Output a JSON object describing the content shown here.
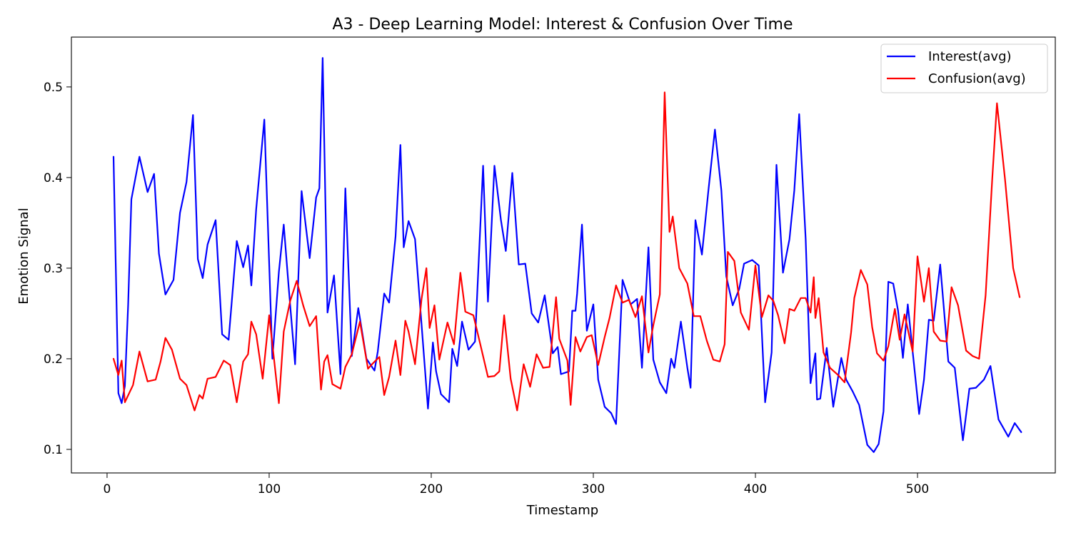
{
  "chart_data": {
    "type": "line",
    "title": "A3 - Deep Learning Model: Interest & Confusion Over Time",
    "xlabel": "Timestamp",
    "ylabel": "Emotion Signal",
    "xlim": [
      -22,
      585
    ],
    "ylim": [
      0.074,
      0.555
    ],
    "x_ticks": [
      0,
      100,
      200,
      300,
      400,
      500
    ],
    "y_ticks": [
      0.1,
      0.2,
      0.3,
      0.4,
      0.5
    ],
    "grid": false,
    "legend_position": "top-right",
    "series": [
      {
        "name": "Interest(avg)",
        "color": "#0000ff",
        "points": [
          [
            4,
            0.423
          ],
          [
            7,
            0.162
          ],
          [
            9,
            0.151
          ],
          [
            11,
            0.17
          ],
          [
            13,
            0.26
          ],
          [
            15,
            0.376
          ],
          [
            20,
            0.423
          ],
          [
            25,
            0.384
          ],
          [
            29,
            0.404
          ],
          [
            32,
            0.316
          ],
          [
            36,
            0.271
          ],
          [
            41,
            0.287
          ],
          [
            45,
            0.361
          ],
          [
            49,
            0.395
          ],
          [
            53,
            0.469
          ],
          [
            56,
            0.31
          ],
          [
            59,
            0.289
          ],
          [
            62,
            0.326
          ],
          [
            67,
            0.353
          ],
          [
            71,
            0.227
          ],
          [
            75,
            0.221
          ],
          [
            80,
            0.33
          ],
          [
            84,
            0.301
          ],
          [
            87,
            0.325
          ],
          [
            89,
            0.281
          ],
          [
            92,
            0.365
          ],
          [
            97,
            0.464
          ],
          [
            102,
            0.2
          ],
          [
            106,
            0.296
          ],
          [
            109,
            0.348
          ],
          [
            112,
            0.28
          ],
          [
            116,
            0.194
          ],
          [
            120,
            0.385
          ],
          [
            125,
            0.311
          ],
          [
            129,
            0.378
          ],
          [
            131,
            0.388
          ],
          [
            133,
            0.532
          ],
          [
            136,
            0.251
          ],
          [
            140,
            0.292
          ],
          [
            144,
            0.183
          ],
          [
            147,
            0.388
          ],
          [
            151,
            0.203
          ],
          [
            155,
            0.256
          ],
          [
            160,
            0.2
          ],
          [
            165,
            0.187
          ],
          [
            167,
            0.208
          ],
          [
            171,
            0.272
          ],
          [
            174,
            0.262
          ],
          [
            178,
            0.335
          ],
          [
            181,
            0.436
          ],
          [
            183,
            0.323
          ],
          [
            186,
            0.352
          ],
          [
            190,
            0.332
          ],
          [
            198,
            0.145
          ],
          [
            201,
            0.218
          ],
          [
            203,
            0.186
          ],
          [
            206,
            0.161
          ],
          [
            211,
            0.152
          ],
          [
            213,
            0.211
          ],
          [
            216,
            0.192
          ],
          [
            219,
            0.241
          ],
          [
            223,
            0.21
          ],
          [
            227,
            0.219
          ],
          [
            232,
            0.413
          ],
          [
            235,
            0.263
          ],
          [
            239,
            0.413
          ],
          [
            243,
            0.353
          ],
          [
            246,
            0.319
          ],
          [
            250,
            0.405
          ],
          [
            254,
            0.304
          ],
          [
            258,
            0.305
          ],
          [
            262,
            0.25
          ],
          [
            266,
            0.24
          ],
          [
            270,
            0.27
          ],
          [
            275,
            0.206
          ],
          [
            278,
            0.213
          ],
          [
            280,
            0.183
          ],
          [
            285,
            0.186
          ],
          [
            287,
            0.253
          ],
          [
            289,
            0.253
          ],
          [
            290,
            0.272
          ],
          [
            293,
            0.348
          ],
          [
            296,
            0.231
          ],
          [
            300,
            0.26
          ],
          [
            303,
            0.177
          ],
          [
            307,
            0.147
          ],
          [
            311,
            0.14
          ],
          [
            314,
            0.128
          ],
          [
            318,
            0.287
          ],
          [
            323,
            0.26
          ],
          [
            327,
            0.266
          ],
          [
            330,
            0.19
          ],
          [
            334,
            0.323
          ],
          [
            337,
            0.199
          ],
          [
            341,
            0.174
          ],
          [
            345,
            0.162
          ],
          [
            348,
            0.2
          ],
          [
            350,
            0.19
          ],
          [
            354,
            0.241
          ],
          [
            358,
            0.19
          ],
          [
            360,
            0.168
          ],
          [
            363,
            0.353
          ],
          [
            367,
            0.315
          ],
          [
            371,
            0.386
          ],
          [
            375,
            0.453
          ],
          [
            379,
            0.386
          ],
          [
            382,
            0.291
          ],
          [
            386,
            0.259
          ],
          [
            390,
            0.277
          ],
          [
            393,
            0.305
          ],
          [
            398,
            0.309
          ],
          [
            402,
            0.303
          ],
          [
            406,
            0.152
          ],
          [
            410,
            0.207
          ],
          [
            413,
            0.414
          ],
          [
            417,
            0.295
          ],
          [
            421,
            0.332
          ],
          [
            424,
            0.386
          ],
          [
            427,
            0.47
          ],
          [
            431,
            0.332
          ],
          [
            434,
            0.173
          ],
          [
            437,
            0.206
          ],
          [
            438,
            0.155
          ],
          [
            440,
            0.156
          ],
          [
            444,
            0.212
          ],
          [
            448,
            0.147
          ],
          [
            453,
            0.201
          ],
          [
            456,
            0.177
          ],
          [
            460,
            0.164
          ],
          [
            464,
            0.149
          ],
          [
            469,
            0.105
          ],
          [
            473,
            0.097
          ],
          [
            476,
            0.106
          ],
          [
            479,
            0.142
          ],
          [
            482,
            0.285
          ],
          [
            485,
            0.283
          ],
          [
            488,
            0.253
          ],
          [
            491,
            0.201
          ],
          [
            494,
            0.26
          ],
          [
            501,
            0.139
          ],
          [
            504,
            0.177
          ],
          [
            507,
            0.243
          ],
          [
            510,
            0.242
          ],
          [
            514,
            0.304
          ],
          [
            519,
            0.197
          ],
          [
            523,
            0.19
          ],
          [
            528,
            0.11
          ],
          [
            532,
            0.167
          ],
          [
            536,
            0.168
          ],
          [
            541,
            0.177
          ],
          [
            545,
            0.192
          ],
          [
            550,
            0.133
          ],
          [
            556,
            0.114
          ],
          [
            560,
            0.129
          ],
          [
            564,
            0.119
          ]
        ]
      },
      {
        "name": "Confusion(avg)",
        "color": "#ff0000",
        "points": [
          [
            4,
            0.2
          ],
          [
            7,
            0.182
          ],
          [
            9,
            0.198
          ],
          [
            11,
            0.152
          ],
          [
            16,
            0.171
          ],
          [
            20,
            0.208
          ],
          [
            25,
            0.175
          ],
          [
            30,
            0.177
          ],
          [
            33,
            0.197
          ],
          [
            36,
            0.223
          ],
          [
            40,
            0.21
          ],
          [
            45,
            0.178
          ],
          [
            49,
            0.171
          ],
          [
            54,
            0.143
          ],
          [
            57,
            0.16
          ],
          [
            59,
            0.156
          ],
          [
            62,
            0.178
          ],
          [
            67,
            0.18
          ],
          [
            72,
            0.198
          ],
          [
            76,
            0.193
          ],
          [
            80,
            0.152
          ],
          [
            84,
            0.197
          ],
          [
            87,
            0.205
          ],
          [
            89,
            0.241
          ],
          [
            92,
            0.227
          ],
          [
            96,
            0.178
          ],
          [
            100,
            0.248
          ],
          [
            106,
            0.151
          ],
          [
            109,
            0.23
          ],
          [
            113,
            0.264
          ],
          [
            117,
            0.286
          ],
          [
            121,
            0.259
          ],
          [
            125,
            0.236
          ],
          [
            129,
            0.247
          ],
          [
            132,
            0.166
          ],
          [
            134,
            0.197
          ],
          [
            136,
            0.204
          ],
          [
            139,
            0.172
          ],
          [
            144,
            0.167
          ],
          [
            147,
            0.191
          ],
          [
            151,
            0.205
          ],
          [
            156,
            0.241
          ],
          [
            161,
            0.189
          ],
          [
            164,
            0.195
          ],
          [
            168,
            0.202
          ],
          [
            171,
            0.16
          ],
          [
            174,
            0.18
          ],
          [
            178,
            0.22
          ],
          [
            181,
            0.182
          ],
          [
            184,
            0.242
          ],
          [
            186,
            0.23
          ],
          [
            190,
            0.194
          ],
          [
            194,
            0.266
          ],
          [
            197,
            0.3
          ],
          [
            199,
            0.234
          ],
          [
            202,
            0.259
          ],
          [
            205,
            0.199
          ],
          [
            210,
            0.24
          ],
          [
            214,
            0.216
          ],
          [
            218,
            0.295
          ],
          [
            221,
            0.252
          ],
          [
            226,
            0.248
          ],
          [
            230,
            0.218
          ],
          [
            235,
            0.18
          ],
          [
            239,
            0.181
          ],
          [
            242,
            0.186
          ],
          [
            245,
            0.248
          ],
          [
            249,
            0.178
          ],
          [
            253,
            0.143
          ],
          [
            257,
            0.194
          ],
          [
            261,
            0.169
          ],
          [
            265,
            0.205
          ],
          [
            269,
            0.19
          ],
          [
            273,
            0.191
          ],
          [
            277,
            0.268
          ],
          [
            279,
            0.222
          ],
          [
            284,
            0.198
          ],
          [
            286,
            0.149
          ],
          [
            289,
            0.224
          ],
          [
            292,
            0.208
          ],
          [
            296,
            0.224
          ],
          [
            299,
            0.226
          ],
          [
            303,
            0.193
          ],
          [
            307,
            0.224
          ],
          [
            310,
            0.245
          ],
          [
            314,
            0.281
          ],
          [
            318,
            0.262
          ],
          [
            322,
            0.265
          ],
          [
            326,
            0.246
          ],
          [
            330,
            0.269
          ],
          [
            334,
            0.207
          ],
          [
            337,
            0.237
          ],
          [
            341,
            0.271
          ],
          [
            344,
            0.494
          ],
          [
            347,
            0.34
          ],
          [
            349,
            0.357
          ],
          [
            353,
            0.3
          ],
          [
            358,
            0.283
          ],
          [
            362,
            0.247
          ],
          [
            366,
            0.247
          ],
          [
            370,
            0.22
          ],
          [
            374,
            0.199
          ],
          [
            378,
            0.197
          ],
          [
            381,
            0.216
          ],
          [
            383,
            0.318
          ],
          [
            387,
            0.308
          ],
          [
            391,
            0.251
          ],
          [
            396,
            0.232
          ],
          [
            400,
            0.303
          ],
          [
            404,
            0.246
          ],
          [
            408,
            0.27
          ],
          [
            411,
            0.264
          ],
          [
            414,
            0.248
          ],
          [
            418,
            0.217
          ],
          [
            421,
            0.255
          ],
          [
            424,
            0.253
          ],
          [
            428,
            0.267
          ],
          [
            431,
            0.267
          ],
          [
            434,
            0.251
          ],
          [
            436,
            0.29
          ],
          [
            437,
            0.245
          ],
          [
            439,
            0.267
          ],
          [
            442,
            0.207
          ],
          [
            446,
            0.19
          ],
          [
            451,
            0.182
          ],
          [
            455,
            0.174
          ],
          [
            459,
            0.229
          ],
          [
            461,
            0.267
          ],
          [
            465,
            0.298
          ],
          [
            469,
            0.282
          ],
          [
            472,
            0.235
          ],
          [
            475,
            0.206
          ],
          [
            479,
            0.198
          ],
          [
            482,
            0.214
          ],
          [
            486,
            0.255
          ],
          [
            489,
            0.221
          ],
          [
            492,
            0.249
          ],
          [
            497,
            0.208
          ],
          [
            500,
            0.313
          ],
          [
            504,
            0.263
          ],
          [
            507,
            0.3
          ],
          [
            510,
            0.23
          ],
          [
            514,
            0.22
          ],
          [
            518,
            0.219
          ],
          [
            521,
            0.279
          ],
          [
            525,
            0.259
          ],
          [
            530,
            0.209
          ],
          [
            534,
            0.203
          ],
          [
            538,
            0.2
          ],
          [
            542,
            0.27
          ],
          [
            546,
            0.396
          ],
          [
            549,
            0.482
          ],
          [
            554,
            0.398
          ],
          [
            559,
            0.3
          ],
          [
            563,
            0.268
          ]
        ]
      }
    ]
  }
}
